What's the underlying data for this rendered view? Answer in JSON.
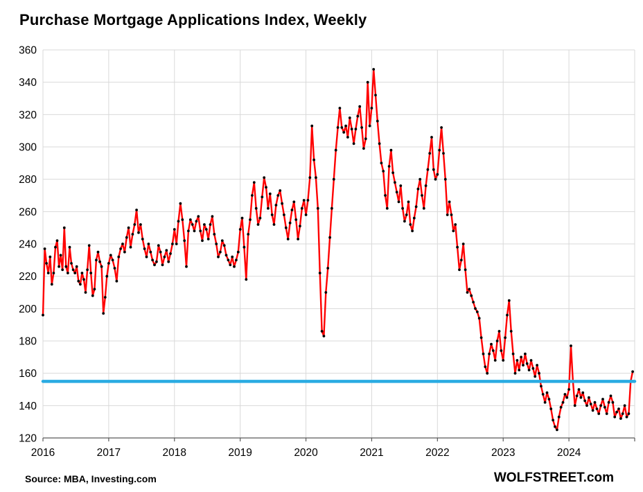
{
  "title": "Purchase Mortgage Applications Index, Weekly",
  "source_note": "Source: MBA, Investing.com",
  "watermark": "WOLFSTREET.com",
  "colors": {
    "series_line": "#FF0000",
    "series_marker": "#000000",
    "reference_line": "#29ABE2",
    "gridline": "#d9d9d9",
    "axis": "#595959"
  },
  "chart_data": {
    "type": "line",
    "title": "Purchase Mortgage Applications Index, Weekly",
    "xlabel": "",
    "ylabel": "",
    "x_range": [
      2016,
      2025
    ],
    "y_range": [
      120,
      360
    ],
    "y_ticks": [
      120,
      140,
      160,
      180,
      200,
      220,
      240,
      260,
      280,
      300,
      320,
      340,
      360
    ],
    "x_tick_positions": [
      2016,
      2017,
      2018,
      2019,
      2020,
      2021,
      2022,
      2023,
      2024
    ],
    "x_tick_labels": [
      "2016",
      "2017",
      "2018",
      "2019",
      "2020",
      "2021",
      "2022",
      "2023",
      "2024"
    ],
    "x_gridline_positions": [
      2016,
      2017,
      2018,
      2019,
      2020,
      2021,
      2022,
      2023,
      2024,
      2025
    ],
    "grid": true,
    "legend_position": "none",
    "reference_line": {
      "value": 155,
      "color": "#29ABE2"
    },
    "series": [
      {
        "name": "Purchase Mortgage Applications Index (weekly, estimated from plot)",
        "line_color": "#FF0000",
        "marker_color": "#000000",
        "points_by_year": [
          {
            "year": 2016,
            "values": [
              196,
              237,
              228,
              222,
              232,
              215,
              222,
              238,
              242,
              226,
              233,
              224,
              250,
              226,
              222,
              238,
              228,
              224,
              222,
              226,
              217,
              215,
              222,
              218,
              210,
              224,
              239,
              222,
              208,
              212,
              230,
              235,
              229,
              226,
              197,
              207,
              220
            ]
          },
          {
            "year": 2017,
            "values": [
              228,
              233,
              230,
              225,
              217,
              232,
              237,
              240,
              235,
              244,
              250,
              238,
              246,
              252,
              261,
              247,
              252,
              243,
              237,
              232,
              240,
              235,
              230,
              227,
              229,
              239,
              235,
              227,
              232,
              236,
              229,
              234,
              240
            ]
          },
          {
            "year": 2018,
            "values": [
              249,
              240,
              254,
              265,
              255,
              242,
              226,
              248,
              255,
              252,
              248,
              254,
              257,
              248,
              242,
              252,
              249,
              243,
              252,
              257,
              246,
              240,
              232,
              235,
              242,
              239,
              233,
              230,
              227,
              232,
              226,
              230,
              235
            ]
          },
          {
            "year": 2019,
            "values": [
              249,
              256,
              238,
              218,
              246,
              255,
              270,
              278,
              262,
              252,
              256,
              269,
              281,
              275,
              262,
              271,
              258,
              252,
              264,
              270,
              273,
              265,
              258,
              250,
              243,
              253,
              261,
              266,
              255,
              243,
              251,
              262,
              267
            ]
          },
          {
            "year": 2020,
            "values": [
              258,
              267,
              281,
              313,
              292,
              281,
              262,
              222,
              186,
              183,
              210,
              225,
              244,
              262,
              280,
              298,
              312,
              324,
              312,
              309,
              313,
              306,
              318,
              311,
              302,
              311,
              319,
              325,
              312,
              299,
              305,
              340,
              313
            ]
          },
          {
            "year": 2021,
            "values": [
              324,
              348,
              332,
              316,
              302,
              290,
              285,
              270,
              262,
              288,
              298,
              284,
              278,
              272,
              266,
              276,
              262,
              254,
              258,
              266,
              252,
              248,
              256,
              263,
              274,
              280,
              270,
              262,
              276,
              286,
              296,
              306,
              286,
              280
            ]
          },
          {
            "year": 2022,
            "values": [
              283,
              298,
              312,
              296,
              280,
              258,
              266,
              258,
              248,
              252,
              238,
              224,
              230,
              240,
              224,
              210,
              212,
              208,
              204,
              200,
              198,
              194,
              182,
              172,
              164,
              160,
              172,
              178,
              174,
              168,
              180,
              186,
              174
            ]
          },
          {
            "year": 2023,
            "values": [
              168,
              182,
              196,
              205,
              186,
              172,
              160,
              168,
              162,
              170,
              165,
              172,
              166,
              162,
              168,
              163,
              158,
              165,
              160,
              152,
              147,
              142,
              148,
              144,
              138,
              131,
              127,
              125,
              133,
              139,
              142,
              147,
              145
            ]
          },
          {
            "year": 2024,
            "values": [
              150,
              177,
              155,
              140,
              146,
              150,
              145,
              148,
              143,
              140,
              145,
              141,
              137,
              142,
              138,
              135,
              140,
              144,
              139,
              135,
              142,
              146,
              142,
              133,
              136,
              138,
              132,
              135,
              140,
              133,
              135,
              155,
              161
            ]
          }
        ]
      }
    ]
  }
}
